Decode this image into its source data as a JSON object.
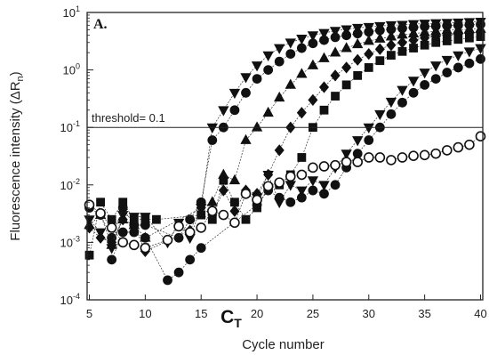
{
  "chart_data": {
    "type": "line",
    "panel_label": "A.",
    "xlabel": "Cycle number",
    "ylabel": "Fluorescence intensity (ΔR",
    "ylabel_sub": "n",
    "ylabel_close": ")",
    "y_scale": "log",
    "xlim": [
      4.8,
      40.2
    ],
    "ylim": [
      0.0001,
      10
    ],
    "x_ticks": [
      5,
      10,
      15,
      20,
      25,
      30,
      35,
      40
    ],
    "x_tick_labels": [
      "5",
      "10",
      "15",
      "20",
      "25",
      "30",
      "35",
      "40"
    ],
    "y_ticks": [
      0.0001,
      0.001,
      0.01,
      0.1,
      1,
      10
    ],
    "y_tick_labels": [
      {
        "base": "10",
        "exp": "-4"
      },
      {
        "base": "10",
        "exp": "-3"
      },
      {
        "base": "10",
        "exp": "-2"
      },
      {
        "base": "10",
        "exp": "-1"
      },
      {
        "base": "10",
        "exp": "0"
      },
      {
        "base": "10",
        "exp": "1"
      }
    ],
    "threshold": {
      "value": 0.1,
      "label": "threshold= 0.1"
    },
    "ct_label": {
      "main": "C",
      "sub": "T",
      "x": 17.3
    },
    "grid": false,
    "series": [
      {
        "marker": "triangle-down",
        "fill": "#111111",
        "x": [
          5,
          6,
          7,
          8,
          9,
          10,
          12,
          13,
          14,
          15,
          16,
          17,
          18,
          19,
          20,
          21,
          22,
          23,
          24,
          25,
          26,
          27,
          28,
          29,
          30,
          31,
          32,
          33,
          34,
          35,
          36,
          37,
          38,
          39,
          40
        ],
        "y": [
          0.0025,
          0.0015,
          0.0008,
          0.003,
          0.0028,
          0.0028,
          0.001,
          0.0022,
          0.0012,
          0.004,
          0.1,
          0.2,
          0.4,
          0.75,
          1.2,
          1.8,
          2.4,
          3.0,
          3.5,
          4.0,
          4.4,
          4.8,
          5.1,
          5.4,
          5.6,
          5.8,
          6.0,
          6.1,
          6.3,
          6.4,
          6.5,
          6.6,
          6.7,
          6.8,
          6.9
        ]
      },
      {
        "marker": "circle",
        "fill": "#111111",
        "x": [
          5,
          6,
          7,
          8,
          9,
          10,
          13,
          14,
          15,
          16,
          17,
          18,
          19,
          20,
          21,
          22,
          23,
          24,
          25,
          26,
          27,
          28,
          29,
          30,
          31,
          32,
          33,
          34,
          35,
          36,
          37,
          38,
          39,
          40
        ],
        "y": [
          0.004,
          0.003,
          0.0012,
          0.004,
          0.002,
          0.002,
          0.0012,
          0.0025,
          0.005,
          0.06,
          0.1,
          0.2,
          0.4,
          0.7,
          1.0,
          1.4,
          1.9,
          2.4,
          2.9,
          3.3,
          3.7,
          4.0,
          4.3,
          4.6,
          4.9,
          5.1,
          5.3,
          5.5,
          5.7,
          5.8,
          5.9,
          6.0,
          6.1,
          6.2
        ]
      },
      {
        "marker": "triangle-up",
        "fill": "#111111",
        "x": [
          5,
          6,
          7,
          8,
          9,
          10,
          16,
          17,
          18,
          19,
          20,
          21,
          22,
          23,
          24,
          25,
          26,
          27,
          28,
          29,
          30,
          31,
          32,
          33,
          34,
          35,
          36,
          37,
          38,
          39,
          40
        ],
        "y": [
          0.002,
          0.003,
          0.0009,
          0.0025,
          0.002,
          0.0012,
          0.005,
          0.015,
          0.012,
          0.06,
          0.1,
          0.18,
          0.33,
          0.55,
          0.85,
          1.2,
          1.6,
          2.0,
          2.4,
          2.8,
          3.2,
          3.5,
          3.8,
          4.1,
          4.3,
          4.5,
          4.7,
          4.9,
          5.0,
          5.1,
          5.2
        ]
      },
      {
        "marker": "diamond",
        "fill": "#111111",
        "x": [
          5,
          6,
          7,
          8,
          9,
          10,
          14,
          15,
          16,
          17,
          18,
          19,
          20,
          21,
          22,
          23,
          24,
          25,
          26,
          27,
          28,
          29,
          30,
          31,
          32,
          33,
          34,
          35,
          36,
          37,
          38,
          39,
          40
        ],
        "y": [
          0.0018,
          0.0012,
          0.001,
          0.0025,
          0.002,
          0.0007,
          0.0016,
          0.004,
          0.003,
          0.008,
          0.0035,
          0.008,
          0.007,
          0.015,
          0.04,
          0.1,
          0.18,
          0.3,
          0.5,
          0.8,
          1.1,
          1.5,
          1.9,
          2.3,
          2.7,
          3.0,
          3.3,
          3.6,
          3.8,
          4.0,
          4.2,
          4.4,
          4.5
        ]
      },
      {
        "marker": "square",
        "fill": "#111111",
        "x": [
          5,
          6,
          7,
          8,
          9,
          10,
          11,
          15,
          16,
          17,
          18,
          19,
          20,
          21,
          22,
          23,
          24,
          25,
          26,
          27,
          28,
          29,
          30,
          31,
          32,
          33,
          34,
          35,
          36,
          37,
          38,
          39,
          40
        ],
        "y": [
          0.0006,
          0.005,
          0.0025,
          0.005,
          0.0025,
          0.0025,
          0.0025,
          0.003,
          0.0025,
          0.012,
          0.005,
          0.0025,
          0.004,
          0.009,
          0.01,
          0.015,
          0.03,
          0.1,
          0.2,
          0.35,
          0.55,
          0.8,
          1.1,
          1.45,
          1.8,
          2.1,
          2.4,
          2.7,
          3.0,
          3.2,
          3.4,
          3.6,
          3.8
        ]
      },
      {
        "marker": "triangle-down",
        "fill": "#111111",
        "x": [
          20,
          21,
          22,
          23,
          24,
          25,
          26,
          27,
          28,
          29,
          30,
          31,
          32,
          33,
          34,
          35,
          36,
          37,
          38,
          39,
          40
        ],
        "y": [
          0.006,
          0.015,
          0.005,
          0.01,
          0.008,
          0.012,
          0.01,
          0.02,
          0.035,
          0.06,
          0.1,
          0.17,
          0.28,
          0.45,
          0.65,
          0.9,
          1.2,
          1.5,
          1.8,
          2.1,
          2.4
        ]
      },
      {
        "marker": "circle",
        "fill": "#111111",
        "x": [
          7,
          8,
          9,
          10,
          12,
          13,
          14,
          15,
          20,
          21,
          22,
          23,
          24,
          25,
          26,
          27,
          28,
          29,
          30,
          31,
          32,
          33,
          34,
          35,
          36,
          37,
          38,
          39,
          40
        ],
        "y": [
          0.0005,
          0.0015,
          0.0015,
          0.0012,
          0.00022,
          0.0003,
          0.0005,
          0.0008,
          0.0045,
          0.008,
          0.006,
          0.005,
          0.006,
          0.008,
          0.007,
          0.01,
          0.02,
          0.035,
          0.06,
          0.1,
          0.17,
          0.27,
          0.4,
          0.55,
          0.7,
          0.9,
          1.1,
          1.3,
          1.55
        ]
      },
      {
        "marker": "circle",
        "fill": "#ffffff",
        "x": [
          5,
          6,
          7,
          8,
          9,
          10,
          12,
          13,
          14,
          15,
          16,
          17,
          18,
          19,
          20,
          21,
          22,
          23,
          24,
          25,
          26,
          27,
          28,
          29,
          30,
          31,
          32,
          33,
          34,
          35,
          36,
          37,
          38,
          39,
          40
        ],
        "y": [
          0.0045,
          0.0032,
          0.0018,
          0.001,
          0.0009,
          0.0008,
          0.0011,
          0.0019,
          0.0015,
          0.0018,
          0.0035,
          0.003,
          0.0022,
          0.007,
          0.0055,
          0.0095,
          0.011,
          0.014,
          0.015,
          0.02,
          0.021,
          0.022,
          0.025,
          0.025,
          0.03,
          0.03,
          0.027,
          0.03,
          0.032,
          0.033,
          0.035,
          0.04,
          0.045,
          0.05,
          0.07
        ]
      }
    ]
  }
}
